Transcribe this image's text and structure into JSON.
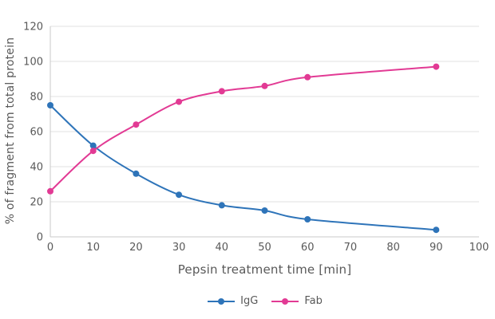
{
  "chart_data": {
    "type": "line",
    "title": "",
    "xlabel": "Pepsin treatment time [min]",
    "ylabel": "% of fragment from total protein",
    "x": [
      0,
      10,
      20,
      30,
      40,
      50,
      60,
      90
    ],
    "series": [
      {
        "name": "IgG",
        "color": "#2e74b9",
        "values": [
          75,
          52,
          36,
          24,
          18,
          15,
          10,
          4
        ]
      },
      {
        "name": "Fab",
        "color": "#e23a94",
        "values": [
          26,
          49,
          64,
          77,
          83,
          86,
          91,
          97
        ]
      }
    ],
    "xlim": [
      0,
      100
    ],
    "ylim": [
      0,
      120
    ],
    "x_ticks": [
      0,
      10,
      20,
      30,
      40,
      50,
      60,
      70,
      80,
      90,
      100
    ],
    "y_ticks": [
      0,
      20,
      40,
      60,
      80,
      100,
      120
    ],
    "grid": true,
    "smooth": true,
    "marker": "circle",
    "legend_position": "bottom"
  },
  "colors": {
    "grid": "#e2e2e2",
    "axis": "#c9c9c9",
    "text": "#595959",
    "background": "#ffffff"
  }
}
